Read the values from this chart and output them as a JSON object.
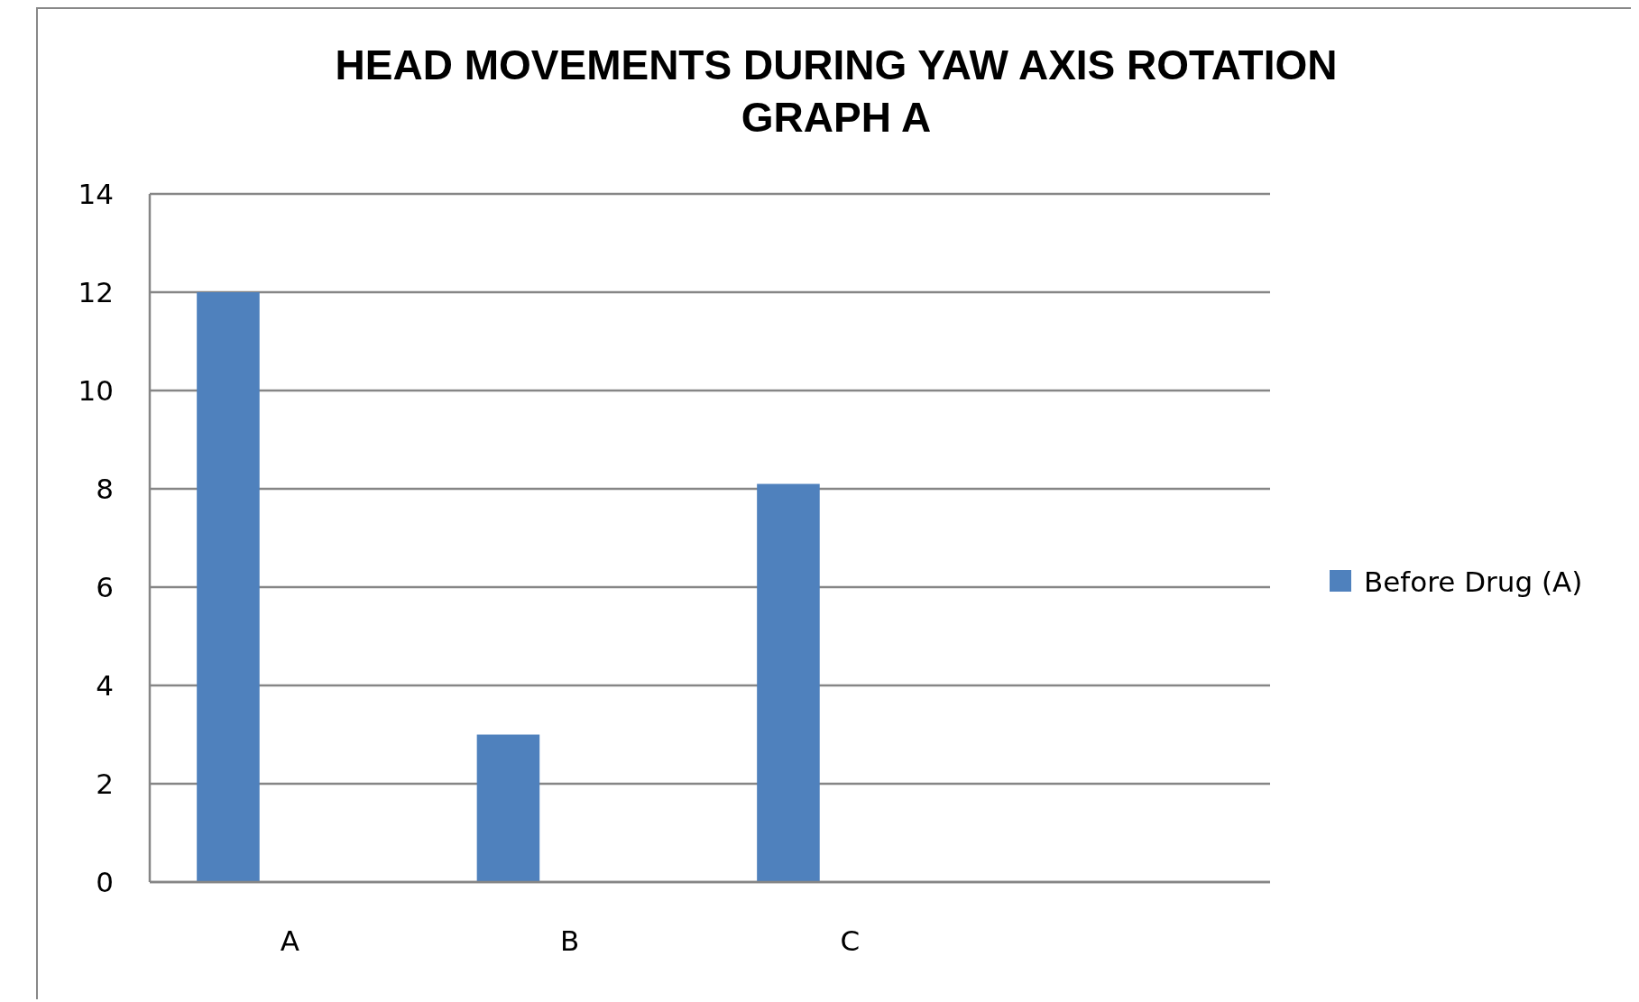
{
  "chart_data": {
    "type": "bar",
    "title": "HEAD MOVEMENTS DURING YAW AXIS ROTATION\nGRAPH A",
    "categories": [
      "A",
      "B",
      "C",
      null
    ],
    "series": [
      {
        "name": "Before Drug (A)",
        "color": "#4f81bd",
        "values": [
          12,
          3,
          8.1,
          null
        ]
      }
    ],
    "ylim": [
      0,
      14
    ],
    "yticks": [
      0,
      2,
      4,
      6,
      8,
      10,
      12,
      14
    ],
    "grid": "y",
    "legend": "right"
  }
}
